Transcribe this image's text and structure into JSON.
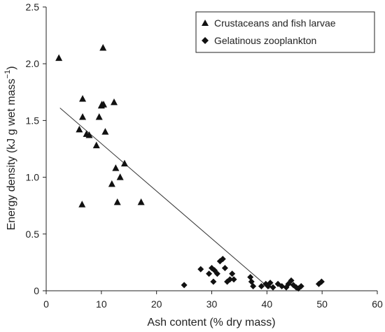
{
  "chart_data": {
    "type": "scatter",
    "xlabel": "Ash content (% dry mass)",
    "ylabel_main": "Energy density (kJ g wet mass",
    "ylabel_sup": "−1",
    "ylabel_close": ")",
    "xlim": [
      0,
      60
    ],
    "ylim": [
      0,
      2.5
    ],
    "xticks": [
      "0",
      "10",
      "20",
      "30",
      "40",
      "50",
      "60"
    ],
    "yticks": [
      "0",
      "0.5",
      "1.0",
      "1.5",
      "2.0",
      "2.5"
    ],
    "grid": false,
    "legend_position": "top-right",
    "series": [
      {
        "name": "Crustaceans and fish larvae",
        "marker": "triangle",
        "x": [
          2.3,
          6.6,
          6.0,
          6.6,
          7.3,
          7.8,
          9.1,
          9.6,
          10.1,
          10.4,
          10.3,
          10.0,
          10.7,
          11.9,
          12.3,
          12.6,
          13.4,
          14.2,
          12.9,
          6.5,
          17.2
        ],
        "y": [
          2.05,
          1.69,
          1.42,
          1.53,
          1.38,
          1.37,
          1.28,
          1.53,
          1.64,
          1.64,
          2.14,
          1.63,
          1.4,
          0.94,
          1.66,
          1.08,
          1.0,
          1.12,
          0.78,
          0.76,
          0.78
        ]
      },
      {
        "name": "Gelatinous zooplankton",
        "marker": "diamond",
        "x": [
          25.0,
          28.0,
          29.5,
          30.0,
          30.3,
          30.5,
          31.0,
          31.5,
          32.0,
          32.4,
          32.8,
          33.3,
          33.7,
          34.0,
          37.0,
          37.2,
          37.5,
          39.0,
          39.8,
          40.2,
          40.6,
          41.1,
          42.0,
          42.7,
          43.5,
          43.9,
          44.4,
          44.8,
          45.3,
          45.7,
          46.2,
          49.4,
          49.9
        ],
        "y": [
          0.05,
          0.19,
          0.15,
          0.2,
          0.08,
          0.18,
          0.15,
          0.26,
          0.28,
          0.2,
          0.08,
          0.1,
          0.15,
          0.1,
          0.12,
          0.08,
          0.04,
          0.04,
          0.06,
          0.04,
          0.07,
          0.03,
          0.06,
          0.04,
          0.03,
          0.06,
          0.09,
          0.05,
          0.03,
          0.02,
          0.04,
          0.06,
          0.08
        ]
      }
    ],
    "trendline": {
      "x": [
        2.5,
        40.5
      ],
      "y": [
        1.61,
        0.02
      ]
    }
  }
}
